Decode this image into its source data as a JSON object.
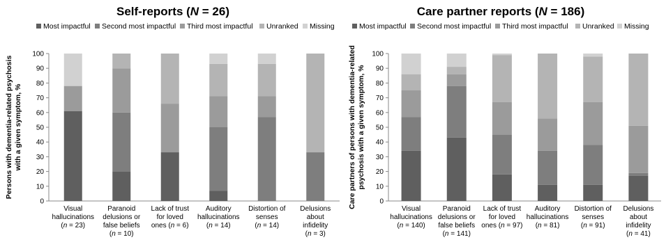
{
  "colors": {
    "most_impactful": "#5f5f5f",
    "second_most_impactful": "#7e7e7e",
    "third_most_impactful": "#9b9b9b",
    "unranked": "#b4b4b4",
    "missing": "#d1d1d1",
    "axis": "#888888"
  },
  "chart_data": [
    {
      "type": "bar",
      "stacked": true,
      "title_prefix": "Self-reports (",
      "title_n": "N",
      "title_suffix": " = 26)",
      "ylabel_line1": "Persons with dementia-related psychosis",
      "ylabel_line2": "with a given symptom, %",
      "ylim": [
        0,
        100
      ],
      "yticks": [
        0,
        10,
        20,
        30,
        40,
        50,
        60,
        70,
        80,
        90,
        100
      ],
      "legend": [
        "Most impactful",
        "Second most impactful",
        "Third most impactful",
        "Unranked",
        "Missing"
      ],
      "legend_position": "top",
      "categories": [
        {
          "lines": [
            "Visual",
            "hallucinations"
          ],
          "n_prefix": "(",
          "n_label": "n",
          "n_suffix": " = 23)"
        },
        {
          "lines": [
            "Paranoid",
            "delusions or",
            "false beliefs"
          ],
          "n_prefix": "(",
          "n_label": "n",
          "n_suffix": " = 10)"
        },
        {
          "lines": [
            "Lack of trust",
            "for loved",
            "ones"
          ],
          "n_prefix": "",
          "n_label": "",
          "n_suffix": "(",
          "inline_n": true,
          "inline_n_label": "n",
          "inline_n_suffix": " = 6)"
        },
        {
          "lines": [
            "Auditory",
            "hallucinations"
          ],
          "n_prefix": "(",
          "n_label": "n",
          "n_suffix": " = 14)"
        },
        {
          "lines": [
            "Distortion of",
            "senses"
          ],
          "n_prefix": "(",
          "n_label": "n",
          "n_suffix": " = 14)"
        },
        {
          "lines": [
            "Delusions",
            "about",
            "infidelity"
          ],
          "n_prefix": "(",
          "n_label": "n",
          "n_suffix": " = 3)"
        }
      ],
      "series": [
        {
          "name": "Most impactful",
          "values": [
            61,
            20,
            33,
            7,
            0,
            0
          ]
        },
        {
          "name": "Second most impactful",
          "values": [
            0,
            40,
            0,
            43,
            57,
            33
          ]
        },
        {
          "name": "Third most impactful",
          "values": [
            17,
            30,
            33,
            21,
            14,
            0
          ]
        },
        {
          "name": "Unranked",
          "values": [
            0,
            10,
            34,
            22,
            22,
            67
          ]
        },
        {
          "name": "Missing",
          "values": [
            22,
            0,
            0,
            7,
            7,
            0
          ]
        }
      ]
    },
    {
      "type": "bar",
      "stacked": true,
      "title_prefix": "Care partner reports (",
      "title_n": "N",
      "title_suffix": " = 186)",
      "ylabel_line1": "Care partners of persons with dementia-related",
      "ylabel_line2": "psychosis with a given symptom, %",
      "ylim": [
        0,
        100
      ],
      "yticks": [
        0,
        10,
        20,
        30,
        40,
        50,
        60,
        70,
        80,
        90,
        100
      ],
      "legend": [
        "Most impactful",
        "Second most impactful",
        "Third most impactful",
        "Unranked",
        "Missing"
      ],
      "legend_position": "top",
      "categories": [
        {
          "lines": [
            "Visual",
            "hallucinations"
          ],
          "n_prefix": "(",
          "n_label": "n",
          "n_suffix": " = 140)"
        },
        {
          "lines": [
            "Paranoid",
            "delusions or",
            "false beliefs"
          ],
          "n_prefix": "(",
          "n_label": "n",
          "n_suffix": " = 141)"
        },
        {
          "lines": [
            "Lack of trust",
            "for loved"
          ],
          "n_prefix": "",
          "n_label": "",
          "n_suffix": "",
          "inline_n": true,
          "inline_text": "ones (",
          "inline_n_label": "n",
          "inline_n_suffix": " = 97)"
        },
        {
          "lines": [
            "Auditory",
            "hallucinations"
          ],
          "n_prefix": "(",
          "n_label": "n",
          "n_suffix": " = 81)"
        },
        {
          "lines": [
            "Distortion of",
            "senses"
          ],
          "n_prefix": "(",
          "n_label": "n",
          "n_suffix": " = 91)"
        },
        {
          "lines": [
            "Delusions",
            "about",
            "infidelity"
          ],
          "n_prefix": "(",
          "n_label": "n",
          "n_suffix": " = 41)"
        }
      ],
      "series": [
        {
          "name": "Most impactful",
          "values": [
            34,
            43,
            18,
            11,
            11,
            17
          ]
        },
        {
          "name": "Second most impactful",
          "values": [
            23,
            35,
            27,
            23,
            27,
            2
          ]
        },
        {
          "name": "Third most impactful",
          "values": [
            18,
            8,
            22,
            22,
            29,
            32
          ]
        },
        {
          "name": "Unranked",
          "values": [
            11,
            5,
            32,
            44,
            31,
            49
          ]
        },
        {
          "name": "Missing",
          "values": [
            14,
            9,
            1,
            0,
            2,
            0
          ]
        }
      ]
    }
  ]
}
